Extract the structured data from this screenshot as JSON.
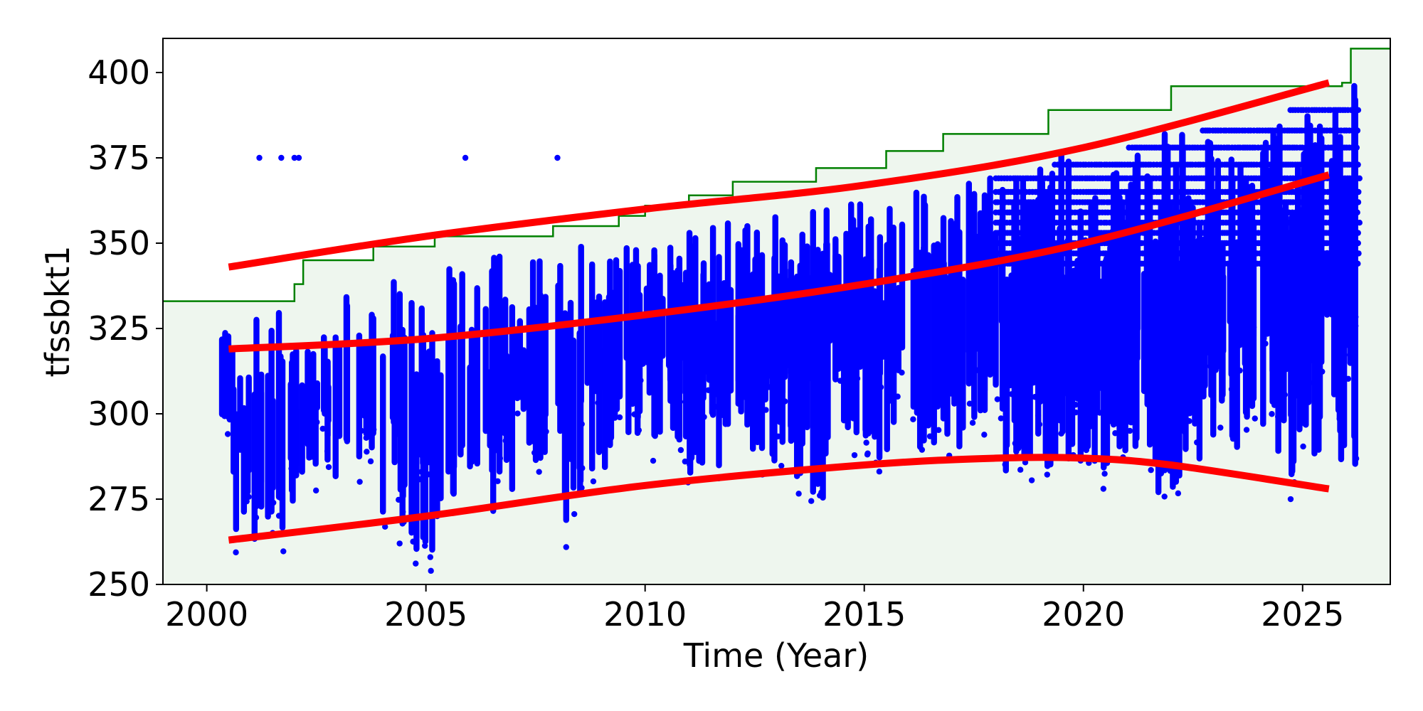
{
  "chart_data": {
    "type": "scatter",
    "title": "",
    "xlabel": "Time (Year)",
    "ylabel": "tfssbkt1",
    "xlim": [
      1999.0,
      2027.0
    ],
    "ylim": [
      250,
      410
    ],
    "x_ticks": [
      2000,
      2005,
      2010,
      2015,
      2020,
      2025
    ],
    "y_ticks": [
      250,
      275,
      300,
      325,
      350,
      375,
      400
    ],
    "grid": false,
    "legend": "none",
    "colors": {
      "points": "#0000ff",
      "trend": "#ff0000",
      "limit_line": "#008000",
      "limit_fill": "#eef6ee"
    },
    "series": [
      {
        "kind": "scatter",
        "x_range": [
          2000.0,
          2026.3
        ],
        "clusters": [
          {
            "x": 2000.0,
            "y_min": 296,
            "y_max": 326
          },
          {
            "x": 2000.6,
            "y_min": 262,
            "y_max": 328
          },
          {
            "x": 2001.4,
            "y_min": 266,
            "y_max": 330
          },
          {
            "x": 2002.2,
            "y_min": 278,
            "y_max": 332
          },
          {
            "x": 2003.0,
            "y_min": 285,
            "y_max": 336
          },
          {
            "x": 2004.0,
            "y_min": 265,
            "y_max": 342
          },
          {
            "x": 2004.6,
            "y_min": 259,
            "y_max": 342
          },
          {
            "x": 2005.4,
            "y_min": 270,
            "y_max": 343
          },
          {
            "x": 2006.2,
            "y_min": 267,
            "y_max": 348
          },
          {
            "x": 2007.0,
            "y_min": 280,
            "y_max": 346
          },
          {
            "x": 2007.8,
            "y_min": 268,
            "y_max": 350
          },
          {
            "x": 2008.6,
            "y_min": 280,
            "y_max": 348
          },
          {
            "x": 2009.4,
            "y_min": 290,
            "y_max": 350
          },
          {
            "x": 2010.2,
            "y_min": 290,
            "y_max": 351
          },
          {
            "x": 2011.0,
            "y_min": 276,
            "y_max": 356
          },
          {
            "x": 2011.8,
            "y_min": 288,
            "y_max": 358
          },
          {
            "x": 2012.6,
            "y_min": 286,
            "y_max": 362
          },
          {
            "x": 2013.4,
            "y_min": 273,
            "y_max": 365
          },
          {
            "x": 2014.2,
            "y_min": 292,
            "y_max": 362
          },
          {
            "x": 2015.0,
            "y_min": 286,
            "y_max": 365
          },
          {
            "x": 2015.8,
            "y_min": 285,
            "y_max": 365
          },
          {
            "x": 2016.6,
            "y_min": 290,
            "y_max": 368
          },
          {
            "x": 2017.4,
            "y_min": 293,
            "y_max": 370
          },
          {
            "x": 2018.2,
            "y_min": 281,
            "y_max": 369
          },
          {
            "x": 2019.0,
            "y_min": 279,
            "y_max": 378
          },
          {
            "x": 2019.8,
            "y_min": 284,
            "y_max": 373
          },
          {
            "x": 2020.6,
            "y_min": 283,
            "y_max": 378
          },
          {
            "x": 2021.4,
            "y_min": 277,
            "y_max": 383
          },
          {
            "x": 2022.2,
            "y_min": 281,
            "y_max": 383
          },
          {
            "x": 2023.0,
            "y_min": 285,
            "y_max": 383
          },
          {
            "x": 2023.8,
            "y_min": 282,
            "y_max": 389
          },
          {
            "x": 2024.6,
            "y_min": 280,
            "y_max": 389
          },
          {
            "x": 2025.4,
            "y_min": 284,
            "y_max": 398
          },
          {
            "x": 2026.2,
            "y_min": 283,
            "y_max": 398
          }
        ],
        "outliers": [
          {
            "x": 2001.2,
            "y": 375
          },
          {
            "x": 2001.7,
            "y": 375
          },
          {
            "x": 2002.0,
            "y": 375
          },
          {
            "x": 2002.1,
            "y": 375
          },
          {
            "x": 2005.9,
            "y": 375
          },
          {
            "x": 2008.0,
            "y": 375
          },
          {
            "x": 2005.1,
            "y": 258
          },
          {
            "x": 2004.4,
            "y": 262
          }
        ],
        "bands_from": 2018.0,
        "bands": [
          344,
          347,
          350,
          353,
          356,
          359,
          362,
          365,
          369,
          373,
          378,
          383,
          389
        ]
      },
      {
        "kind": "line",
        "role": "upper-trend",
        "x": [
          2000.5,
          2005,
          2010,
          2015,
          2020,
          2025.6
        ],
        "y": [
          343,
          352,
          360,
          367,
          378,
          397
        ]
      },
      {
        "kind": "line",
        "role": "middle-trend",
        "x": [
          2000.5,
          2005,
          2010,
          2015,
          2020,
          2025.6
        ],
        "y": [
          319,
          322,
          329,
          338,
          350,
          370
        ]
      },
      {
        "kind": "line",
        "role": "lower-trend",
        "x": [
          2000.5,
          2005,
          2010,
          2015,
          2018,
          2020,
          2022,
          2025.6
        ],
        "y": [
          263,
          270,
          279,
          285,
          287,
          287,
          285,
          278
        ]
      },
      {
        "kind": "step",
        "role": "limit",
        "x": [
          1999.0,
          2002.0,
          2002.2,
          2003.8,
          2005.2,
          2007.9,
          2009.4,
          2010.0,
          2011.0,
          2012.0,
          2013.9,
          2015.5,
          2016.8,
          2019.2,
          2022.0,
          2025.9,
          2026.1,
          2027.0
        ],
        "y": [
          333,
          338,
          345,
          349,
          352,
          355,
          358,
          361,
          364,
          368,
          372,
          377,
          382,
          389,
          396,
          397,
          407,
          407
        ]
      }
    ]
  }
}
